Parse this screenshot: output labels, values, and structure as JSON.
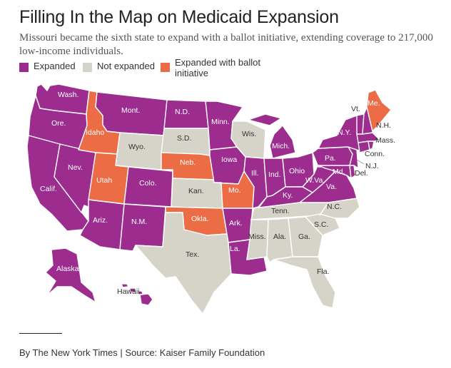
{
  "title": "Filling In the Map on Medicaid Expansion",
  "subtitle": "Missouri became the sixth state to expand with a ballot initiative, extending coverage to 217,000 low-income individuals.",
  "colors": {
    "expanded": "#9c2d8e",
    "not_expanded": "#d6d3c8",
    "ballot": "#eb6c45",
    "label_dark": "#333333",
    "label_light": "#ffffff"
  },
  "legend": [
    {
      "key": "expanded",
      "label": "Expanded"
    },
    {
      "key": "not_expanded",
      "label": "Not expanded"
    },
    {
      "key": "ballot",
      "label": "Expanded with ballot initiative"
    }
  ],
  "states": {
    "wa": {
      "label": "Wash.",
      "status": "expanded"
    },
    "or": {
      "label": "Ore.",
      "status": "expanded"
    },
    "ca": {
      "label": "Calif.",
      "status": "expanded"
    },
    "nv": {
      "label": "Nev.",
      "status": "expanded"
    },
    "id": {
      "label": "Idaho",
      "status": "ballot"
    },
    "mt": {
      "label": "Mont.",
      "status": "expanded"
    },
    "wy": {
      "label": "Wyo.",
      "status": "not_expanded"
    },
    "ut": {
      "label": "Utah",
      "status": "ballot"
    },
    "co": {
      "label": "Colo.",
      "status": "expanded"
    },
    "az": {
      "label": "Ariz.",
      "status": "expanded"
    },
    "nm": {
      "label": "N.M.",
      "status": "expanded"
    },
    "nd": {
      "label": "N.D.",
      "status": "expanded"
    },
    "sd": {
      "label": "S.D.",
      "status": "not_expanded"
    },
    "ne": {
      "label": "Neb.",
      "status": "ballot"
    },
    "ks": {
      "label": "Kan.",
      "status": "not_expanded"
    },
    "ok": {
      "label": "Okla.",
      "status": "ballot"
    },
    "tx": {
      "label": "Tex.",
      "status": "not_expanded"
    },
    "mn": {
      "label": "Minn.",
      "status": "expanded"
    },
    "ia": {
      "label": "Iowa",
      "status": "expanded"
    },
    "mo": {
      "label": "Mo.",
      "status": "ballot"
    },
    "ar": {
      "label": "Ark.",
      "status": "expanded"
    },
    "la": {
      "label": "La.",
      "status": "expanded"
    },
    "wi": {
      "label": "Wis.",
      "status": "not_expanded"
    },
    "il": {
      "label": "Ill.",
      "status": "expanded"
    },
    "mi": {
      "label": "Mich.",
      "status": "expanded"
    },
    "in": {
      "label": "Ind.",
      "status": "expanded"
    },
    "oh": {
      "label": "Ohio",
      "status": "expanded"
    },
    "ky": {
      "label": "Ky.",
      "status": "expanded"
    },
    "tn": {
      "label": "Tenn.",
      "status": "not_expanded"
    },
    "ms": {
      "label": "Miss.",
      "status": "not_expanded"
    },
    "al": {
      "label": "Ala.",
      "status": "not_expanded"
    },
    "ga": {
      "label": "Ga.",
      "status": "not_expanded"
    },
    "fl": {
      "label": "Fla.",
      "status": "not_expanded"
    },
    "sc": {
      "label": "S.C.",
      "status": "not_expanded"
    },
    "nc": {
      "label": "N.C.",
      "status": "not_expanded"
    },
    "va": {
      "label": "Va.",
      "status": "expanded"
    },
    "wv": {
      "label": "W.Va.",
      "status": "expanded"
    },
    "pa": {
      "label": "Pa.",
      "status": "expanded"
    },
    "ny": {
      "label": "N.Y.",
      "status": "expanded"
    },
    "vt": {
      "label": "Vt.",
      "status": "expanded"
    },
    "nh": {
      "label": "N.H.",
      "status": "expanded"
    },
    "me": {
      "label": "Me.",
      "status": "ballot"
    },
    "ma": {
      "label": "Mass.",
      "status": "expanded"
    },
    "ct": {
      "label": "Conn.",
      "status": "expanded"
    },
    "nj": {
      "label": "N.J.",
      "status": "expanded"
    },
    "de": {
      "label": "Del.",
      "status": "expanded"
    },
    "md": {
      "label": "Md.",
      "status": "expanded"
    },
    "ak": {
      "label": "Alaska",
      "status": "expanded"
    },
    "hi": {
      "label": "Hawaii",
      "status": "expanded"
    },
    "ri": {
      "label": "",
      "status": "expanded"
    }
  },
  "credit": "By The New York Times | Source: Kaiser Family Foundation"
}
